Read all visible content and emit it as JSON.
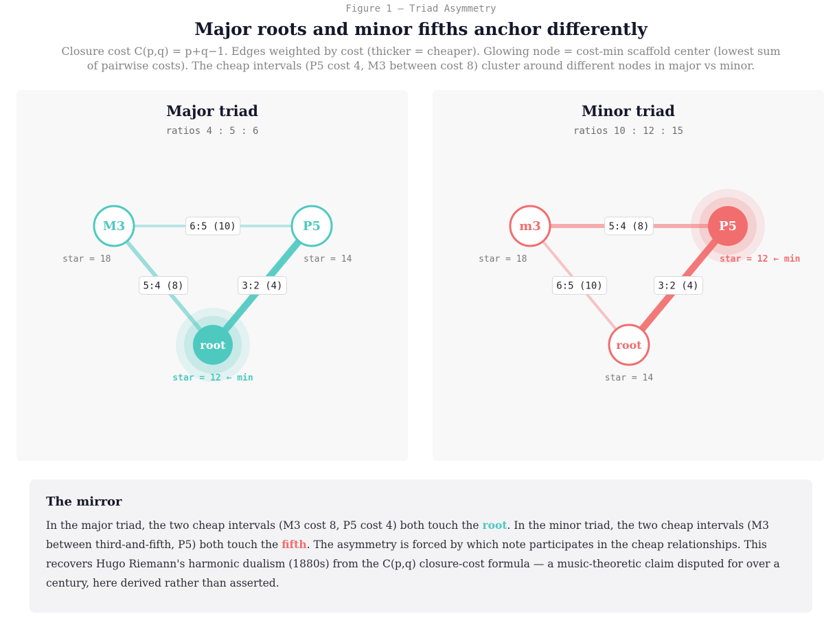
{
  "figure": {
    "label": "Figure 1 — Triad Asymmetry",
    "title": "Major roots and minor fifths anchor differently",
    "subtitle": "Closure cost C(p,q) = p+q−1. Edges weighted by cost (thicker = cheaper). Glowing node = cost-min scaffold center (lowest sum of pairwise costs). The cheap intervals (P5 cost 4, M3 between cost 8) cluster around different nodes in major vs minor."
  },
  "colors": {
    "teal": "#4ec9c0",
    "red": "#f26d6d"
  },
  "panels": [
    {
      "id": "major",
      "title": "Major triad",
      "ratios": "ratios 4 : 5 : 6",
      "color": "#4ec9c0",
      "nodes": [
        {
          "id": "third",
          "label": "M3",
          "star": "star = 18",
          "center": false
        },
        {
          "id": "fifth",
          "label": "P5",
          "star": "star = 14",
          "center": false
        },
        {
          "id": "root",
          "label": "root",
          "star": "star = 12 ← min",
          "center": true
        }
      ],
      "edges": [
        {
          "a": "third",
          "b": "fifth",
          "label": "6:5 (10)",
          "cost": 10
        },
        {
          "a": "third",
          "b": "root",
          "label": "5:4 (8)",
          "cost": 8
        },
        {
          "a": "fifth",
          "b": "root",
          "label": "3:2 (4)",
          "cost": 4
        }
      ]
    },
    {
      "id": "minor",
      "title": "Minor triad",
      "ratios": "ratios 10 : 12 : 15",
      "color": "#f26d6d",
      "nodes": [
        {
          "id": "third",
          "label": "m3",
          "star": "star = 18",
          "center": false
        },
        {
          "id": "fifth",
          "label": "P5",
          "star": "star = 12 ← min",
          "center": true
        },
        {
          "id": "root",
          "label": "root",
          "star": "star = 14",
          "center": false
        }
      ],
      "edges": [
        {
          "a": "third",
          "b": "fifth",
          "label": "5:4 (8)",
          "cost": 8
        },
        {
          "a": "third",
          "b": "root",
          "label": "6:5 (10)",
          "cost": 10
        },
        {
          "a": "fifth",
          "b": "root",
          "label": "3:2 (4)",
          "cost": 4
        }
      ]
    }
  ],
  "note": {
    "title": "The mirror",
    "p1": "In the major triad, the two cheap intervals (M3 cost 8, P5 cost 4) both touch the ",
    "hl1": "root",
    "p2": ". In the minor triad, the two cheap intervals (M3 between third-and-fifth, P5) both touch the ",
    "hl2": "fifth",
    "p3": ". The asymmetry is forced by which note participates in the cheap relationships. This recovers Hugo Riemann's harmonic dualism (1880s) from the C(p,q) closure-cost formula — a music-theoretic claim disputed for over a century, here derived rather than asserted."
  }
}
